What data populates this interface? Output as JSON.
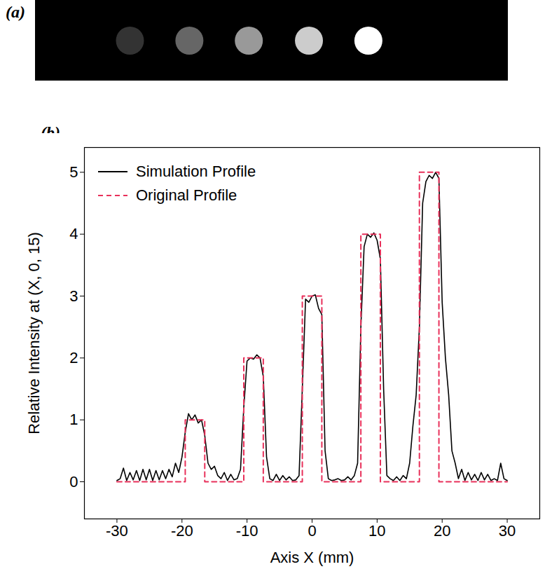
{
  "chart_data": [
    {
      "type": "image",
      "title": "(a)",
      "tick_labels": false,
      "x": [
        -21,
        -12.2,
        -3.4,
        5.5,
        14.3
      ],
      "values": [
        1,
        2,
        3,
        4,
        5
      ],
      "xlim": [
        -35,
        35
      ]
    },
    {
      "type": "line",
      "title": "(b)",
      "x_label": "Axis X (mm)",
      "y_label": "Relative Intensity at (X, 0, 15)",
      "xlim": [
        -35,
        35
      ],
      "xticks": [
        -30,
        -20,
        -10,
        0,
        10,
        20,
        30
      ],
      "ylim": [
        -0.6,
        5.4
      ],
      "yticks": [
        0,
        1,
        2,
        3,
        4,
        5
      ],
      "grid": false,
      "legend": "upper left",
      "series": [
        {
          "name": "Simulation Profile",
          "color": "#000000",
          "line_style": "solid",
          "x": [
            -30,
            -29.5,
            -29,
            -28.5,
            -28,
            -27.5,
            -27,
            -26.5,
            -26,
            -25.5,
            -25,
            -24.5,
            -24,
            -23.5,
            -23,
            -22.5,
            -22,
            -21.5,
            -21,
            -20.5,
            -20,
            -19.5,
            -19,
            -18.5,
            -18,
            -17.5,
            -17,
            -16.5,
            -16,
            -15.5,
            -15,
            -14.5,
            -14,
            -13.5,
            -13,
            -12.5,
            -12,
            -11.5,
            -11,
            -10.5,
            -10,
            -9.5,
            -9,
            -8.5,
            -8,
            -7.5,
            -7,
            -6.5,
            -6,
            -5.5,
            -5,
            -4.5,
            -4,
            -3.5,
            -3,
            -2.5,
            -2,
            -1.5,
            -1,
            -0.5,
            0,
            0.5,
            1,
            1.5,
            2,
            2.5,
            3,
            3.5,
            4,
            4.5,
            5,
            5.5,
            6,
            6.5,
            7,
            7.5,
            8,
            8.5,
            9,
            9.5,
            10,
            10.5,
            11,
            11.5,
            12,
            12.5,
            13,
            13.5,
            14,
            14.5,
            15,
            15.5,
            16,
            16.5,
            17,
            17.5,
            18,
            18.5,
            19,
            19.5,
            20,
            20.5,
            21,
            21.5,
            22,
            22.5,
            23,
            23.5,
            24,
            24.5,
            25,
            25.5,
            26,
            26.5,
            27,
            27.5,
            28,
            28.5,
            29,
            29.5,
            30
          ],
          "values": [
            0.02,
            0.05,
            0.22,
            0.02,
            0.15,
            0.03,
            0.18,
            0.02,
            0.2,
            0.03,
            0.2,
            0.02,
            0.18,
            0.03,
            0.18,
            0.05,
            0.2,
            0.08,
            0.3,
            0.15,
            0.4,
            0.8,
            1.1,
            1.0,
            1.08,
            0.95,
            1.0,
            0.75,
            0.3,
            0.2,
            0.25,
            0.1,
            0.05,
            0.15,
            0.02,
            0.12,
            0.03,
            0.05,
            0.2,
            1.2,
            1.95,
            2.0,
            1.98,
            2.05,
            2.0,
            1.7,
            0.4,
            0.05,
            0.02,
            0.12,
            0.02,
            0.1,
            0.03,
            0.08,
            0.02,
            0.03,
            0.1,
            1.5,
            2.95,
            2.9,
            3.0,
            3.02,
            2.8,
            2.7,
            0.5,
            0.05,
            0.02,
            0.03,
            0.05,
            0.02,
            0.03,
            0.08,
            0.03,
            0.1,
            0.3,
            2.5,
            3.8,
            4.0,
            3.95,
            4.02,
            3.9,
            3.6,
            1.5,
            0.1,
            0.05,
            0.02,
            0.08,
            0.02,
            0.1,
            0.05,
            0.3,
            0.9,
            1.4,
            2.5,
            4.5,
            4.85,
            4.95,
            4.9,
            5.0,
            4.9,
            2.9,
            2.0,
            1.4,
            0.5,
            0.3,
            0.05,
            0.2,
            0.02,
            0.15,
            0.03,
            0.12,
            0.02,
            0.15,
            0.03,
            0.12,
            0.02,
            0.05,
            0.02,
            0.3,
            0.05,
            0.02
          ]
        },
        {
          "name": "Original Profile",
          "color": "#e8305a",
          "line_style": "dashed",
          "x": [
            -30,
            -19.5,
            -19.5,
            -16.5,
            -16.5,
            -10.5,
            -10.5,
            -7.5,
            -7.5,
            -1.5,
            -1.5,
            1.5,
            1.5,
            7.5,
            7.5,
            10.5,
            10.5,
            16.5,
            16.5,
            19.5,
            19.5,
            30
          ],
          "values": [
            0,
            0,
            1,
            1,
            0,
            0,
            2,
            2,
            0,
            0,
            3,
            3,
            0,
            0,
            4,
            4,
            0,
            0,
            5,
            5,
            0,
            0
          ]
        }
      ]
    }
  ]
}
